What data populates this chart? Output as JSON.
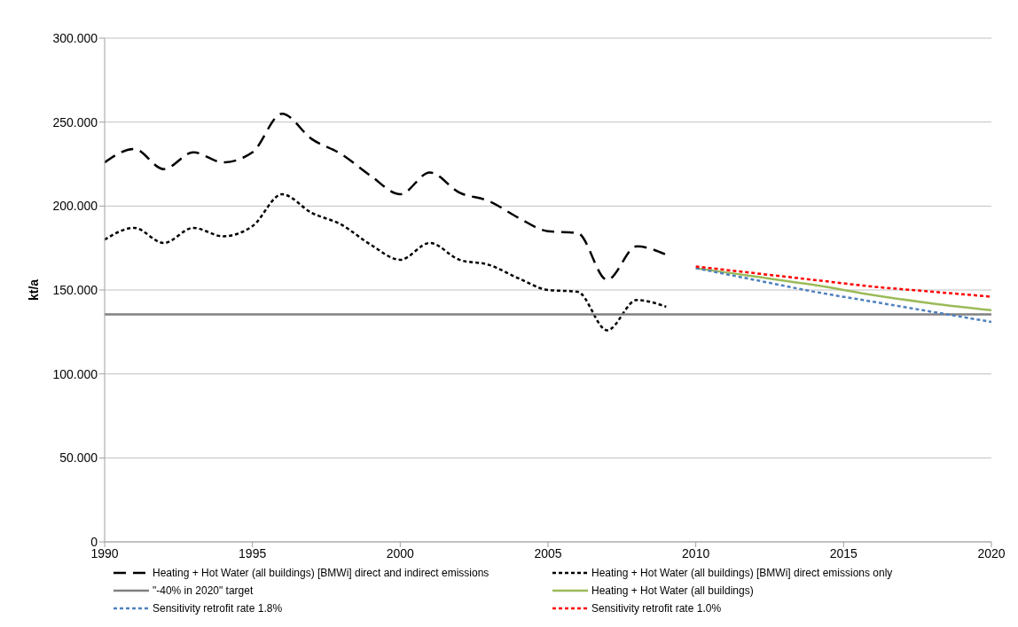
{
  "chart_data": {
    "type": "line",
    "ylabel": "kt/a",
    "xlim": [
      1990,
      2020
    ],
    "xticks": [
      1990,
      1995,
      2000,
      2005,
      2010,
      2015,
      2020
    ],
    "ylim": [
      0,
      300
    ],
    "yticks": [
      0,
      {
        "value": 50,
        "label": "50.000"
      },
      {
        "value": 100,
        "label": "100.000"
      },
      {
        "value": 150,
        "label": "150.000"
      },
      {
        "value": 200,
        "label": "200.000"
      },
      {
        "value": 250,
        "label": "250.000"
      },
      {
        "value": 300,
        "label": "300.000"
      }
    ],
    "grid": "y",
    "legend": "bottom",
    "marker": "none",
    "series": [
      {
        "name": "Heating + Hot Water (all buildings) [BMWi] direct and indirect emissions",
        "color": "#000000",
        "line_style": "dashed",
        "x": [
          1990,
          1991,
          1992,
          1993,
          1994,
          1995,
          1996,
          1997,
          1998,
          1999,
          2000,
          2001,
          2002,
          2003,
          2004,
          2005,
          2006,
          2007,
          2008,
          2009
        ],
        "values": [
          226,
          234,
          222,
          232,
          226,
          232,
          255,
          240,
          231,
          218,
          207,
          220,
          208,
          203,
          193,
          185,
          184,
          156,
          176,
          171
        ]
      },
      {
        "name": "Heating + Hot Water (all buildings) [BMWi] direct  emissions only",
        "color": "#000000",
        "line_style": "dotted",
        "x": [
          1990,
          1991,
          1992,
          1993,
          1994,
          1995,
          1996,
          1997,
          1998,
          1999,
          2000,
          2001,
          2002,
          2003,
          2004,
          2005,
          2006,
          2007,
          2008,
          2009
        ],
        "values": [
          180,
          187,
          178,
          187,
          182,
          188,
          207,
          196,
          189,
          177,
          168,
          178,
          168,
          165,
          157,
          150,
          149,
          126,
          144,
          140
        ]
      },
      {
        "name": "\"-40% in 2020\" target",
        "color": "#808080",
        "line_style": "solid",
        "x": [
          1990,
          2020
        ],
        "values": [
          135.5,
          135.5
        ]
      },
      {
        "name": "Heating + Hot Water (all buildings)",
        "color": "#9bbb59",
        "line_style": "solid",
        "x": [
          2010,
          2012,
          2014,
          2016,
          2018,
          2020
        ],
        "values": [
          163,
          158,
          153,
          147,
          142,
          138
        ]
      },
      {
        "name": "Sensitivity retrofit rate 1.8%",
        "color": "#4f81bd",
        "line_style": "dotted",
        "x": [
          2010,
          2012,
          2014,
          2016,
          2018,
          2020
        ],
        "values": [
          163,
          156,
          149,
          143,
          137,
          131
        ]
      },
      {
        "name": "Sensitivity retrofit rate 1.0%",
        "color": "#ff0000",
        "line_style": "dotted",
        "x": [
          2010,
          2012,
          2014,
          2016,
          2018,
          2020
        ],
        "values": [
          164,
          160,
          156,
          152,
          149,
          146
        ]
      }
    ]
  }
}
